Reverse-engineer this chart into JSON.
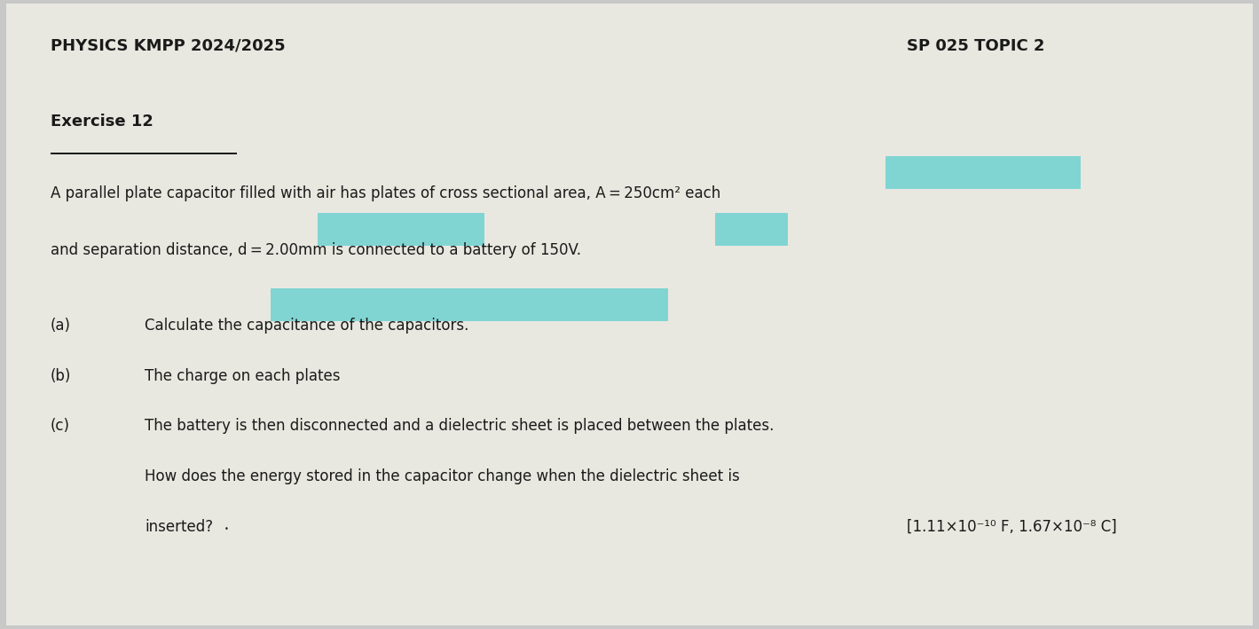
{
  "bg_color": "#c8c8c8",
  "paper_color": "#e8e8e0",
  "title_left": "PHYSICS KMPP 2024/2025",
  "title_right": "SP 025 TOPIC 2",
  "exercise_label": "Exercise 12",
  "part_a_label": "(a)",
  "part_a_text": "Calculate the capacitance of the capacitors.",
  "part_b_label": "(b)",
  "part_b_text": "The charge on each plates",
  "part_c_label": "(c)",
  "part_c_text_line1": "The battery is then disconnected and a dielectric sheet is placed between the plates.",
  "part_c_text_line2": "How does the energy stored in the capacitor change when the dielectric sheet is",
  "part_c_text_line3": "inserted?",
  "answer": "[1.11×10⁻¹⁰ F, 1.67×10⁻⁸ C]",
  "text_color": "#1a1a1a",
  "highlight_color_cyan": "#5ecfcf",
  "font_size_title": 13,
  "font_size_body": 12,
  "font_size_exercise": 13
}
